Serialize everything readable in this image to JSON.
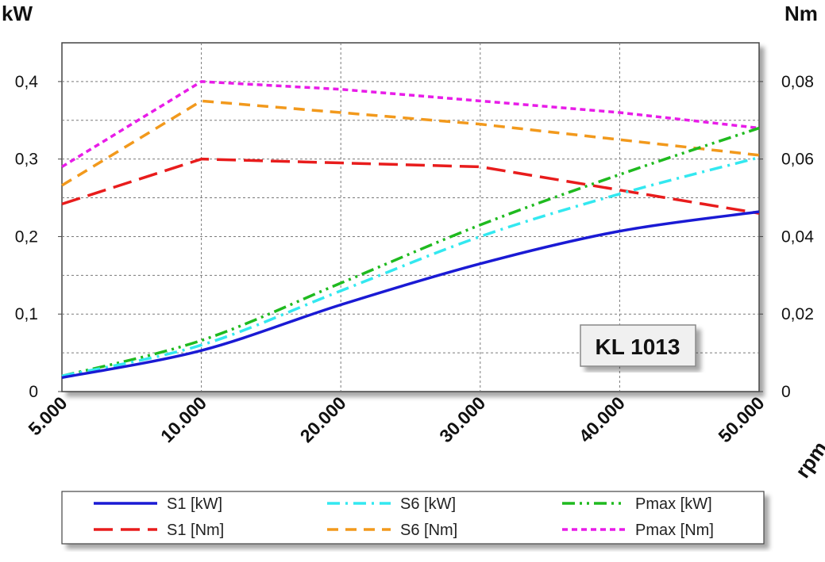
{
  "chart_data": {
    "type": "line",
    "title": "",
    "x_scale": "piecewise (5.000-10.000 spans one gridline interval)",
    "x": [
      5000,
      10000,
      20000,
      30000,
      40000,
      50000
    ],
    "x_tick_labels": [
      "5.000",
      "10.000",
      "20.000",
      "30.000",
      "40.000",
      "50.000"
    ],
    "xlabel": "rpm",
    "ylabel_left": "kW",
    "ylabel_right": "Nm",
    "ylim_left": [
      0,
      0.45
    ],
    "ylim_right": [
      0,
      0.09
    ],
    "y_left_ticks": [
      0,
      0.1,
      0.2,
      0.3,
      0.4
    ],
    "y_left_tick_labels": [
      "0",
      "0,1",
      "0,2",
      "0,3",
      "0,4"
    ],
    "y_right_ticks": [
      0,
      0.02,
      0.04,
      0.06,
      0.08
    ],
    "y_right_tick_labels": [
      "0",
      "0,02",
      "0,04",
      "0,06",
      "0,08"
    ],
    "grid": true,
    "model_label": "KL 1013",
    "series": [
      {
        "name": "S1 [kW]",
        "axis": "left",
        "color": "#1a1ad4",
        "dash": "solid",
        "values": [
          0.018,
          0.053,
          0.112,
          0.165,
          0.207,
          0.232
        ]
      },
      {
        "name": "S6 [kW]",
        "axis": "left",
        "color": "#33e8f0",
        "dash": "dashdot",
        "values": [
          0.02,
          0.06,
          0.13,
          0.2,
          0.255,
          0.302
        ]
      },
      {
        "name": "Pmax [kW]",
        "axis": "left",
        "color": "#1fba1f",
        "dash": "dashdotdot",
        "values": [
          0.02,
          0.066,
          0.14,
          0.215,
          0.28,
          0.34
        ]
      },
      {
        "name": "S1 [Nm]",
        "axis": "right",
        "color": "#e81c1c",
        "dash": "longdash",
        "values": [
          0.0484,
          0.06,
          0.059,
          0.058,
          0.052,
          0.046
        ]
      },
      {
        "name": "S6 [Nm]",
        "axis": "right",
        "color": "#f2991c",
        "dash": "dash",
        "values": [
          0.0532,
          0.075,
          0.072,
          0.069,
          0.065,
          0.061
        ]
      },
      {
        "name": "Pmax [Nm]",
        "axis": "right",
        "color": "#e81ce8",
        "dash": "shortdash",
        "values": [
          0.058,
          0.08,
          0.078,
          0.075,
          0.072,
          0.068
        ]
      }
    ],
    "legend": {
      "placement": "bottom",
      "rows": [
        [
          "S1 [kW]",
          "S6 [kW]",
          "Pmax [kW]"
        ],
        [
          "S1 [Nm]",
          "S6 [Nm]",
          "Pmax [Nm]"
        ]
      ]
    }
  }
}
